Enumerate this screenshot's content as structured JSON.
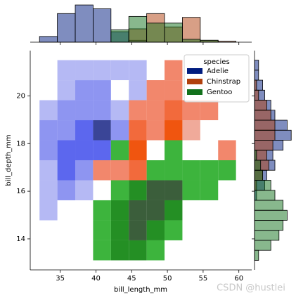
{
  "chart_data": {
    "type": "jointplot",
    "x_label": "bill_length_mm",
    "y_label": "bill_depth_mm",
    "xlim": [
      30.8,
      61.8
    ],
    "ylim": [
      12.7,
      21.9
    ],
    "xticks": [
      35,
      40,
      45,
      50,
      55,
      60
    ],
    "yticks": [
      14,
      16,
      18,
      20
    ],
    "xbins": [
      32.1,
      34.6,
      37.1,
      39.6,
      42.1,
      44.6,
      47.1,
      49.6,
      52.1,
      54.6,
      57.1,
      59.6
    ],
    "ybins": [
      13.1,
      13.94,
      14.78,
      15.62,
      16.46,
      17.3,
      18.14,
      18.98,
      19.82,
      20.66,
      21.5
    ],
    "marginal_x_lim": [
      0,
      42
    ],
    "marginal_y_lim": [
      0,
      20
    ],
    "marginal_y_bins": [
      13.1,
      13.52,
      13.94,
      14.36,
      14.78,
      15.2,
      15.62,
      16.04,
      16.46,
      16.88,
      17.3,
      17.72,
      18.14,
      18.56,
      18.98,
      19.4,
      19.82,
      20.24,
      20.66,
      21.08,
      21.5
    ],
    "legend": {
      "title": "species",
      "position": "upper right"
    },
    "series": [
      {
        "name": "Adelie",
        "color": "#001c7f",
        "cmap": [
          "#b5b9f4",
          "#8e95f1",
          "#5c67ee",
          "#3a4597"
        ],
        "counts": [
          [
            0,
            0,
            0,
            0,
            0,
            0,
            0,
            0,
            0,
            0,
            0
          ],
          [
            0,
            0,
            0,
            0,
            0,
            0,
            0,
            0,
            0,
            0,
            0
          ],
          [
            1,
            0,
            0,
            0,
            0,
            0,
            0,
            0,
            0,
            0,
            0
          ],
          [
            1,
            2,
            1,
            0,
            0,
            0,
            0,
            0,
            0,
            0,
            0
          ],
          [
            1,
            4,
            3,
            0,
            0,
            0,
            0,
            0,
            0,
            0,
            0
          ],
          [
            2,
            4,
            5,
            4,
            0,
            0,
            0,
            0,
            0,
            0,
            0
          ],
          [
            2,
            3,
            5,
            8,
            2,
            0,
            0,
            0,
            0,
            0,
            0
          ],
          [
            1,
            2,
            3,
            2,
            1,
            0,
            0,
            0,
            0,
            0,
            0
          ],
          [
            0,
            1,
            3,
            3,
            0,
            1,
            0,
            0,
            0,
            0,
            0
          ],
          [
            0,
            1,
            1,
            1,
            1,
            1,
            0,
            0,
            0,
            0,
            0
          ]
        ],
        "x_counts": [
          6,
          30,
          39,
          35,
          11,
          2,
          0,
          0,
          0,
          0,
          0
        ],
        "y_counts": [
          0,
          0,
          0,
          0,
          0,
          0,
          1,
          5,
          6,
          10,
          9,
          14,
          18,
          16,
          10,
          8,
          5,
          4,
          2,
          2
        ]
      },
      {
        "name": "Chinstrap",
        "color": "#b1400d",
        "cmap": [
          "#f0aa9a",
          "#f2876c",
          "#f26a3c",
          "#f0550f"
        ],
        "counts": [
          [
            0,
            0,
            0,
            0,
            0,
            0,
            0,
            0,
            0,
            0,
            0
          ],
          [
            0,
            0,
            0,
            0,
            0,
            0,
            0,
            0,
            0,
            0,
            0
          ],
          [
            0,
            0,
            0,
            0,
            0,
            0,
            0,
            0,
            0,
            0,
            0
          ],
          [
            0,
            0,
            0,
            0,
            0,
            0,
            0,
            0,
            0,
            0,
            0
          ],
          [
            0,
            0,
            0,
            2,
            2,
            5,
            0,
            0,
            0,
            0,
            0
          ],
          [
            0,
            0,
            0,
            0,
            0,
            7,
            0,
            0,
            0,
            0,
            2
          ],
          [
            0,
            0,
            0,
            0,
            0,
            4,
            3,
            6,
            1,
            0,
            0
          ],
          [
            0,
            0,
            0,
            0,
            0,
            2,
            2,
            5,
            2,
            2,
            0
          ],
          [
            0,
            0,
            0,
            0,
            0,
            0,
            2,
            2,
            0,
            0,
            0
          ],
          [
            0,
            0,
            0,
            0,
            0,
            0,
            0,
            2,
            0,
            0,
            0
          ]
        ],
        "x_counts": [
          0,
          0,
          0,
          0,
          0,
          14,
          30,
          16,
          26,
          2,
          1
        ],
        "y_counts": [
          0,
          0,
          0,
          0,
          0,
          0,
          0,
          1,
          4,
          7,
          6,
          9,
          10,
          10,
          8,
          6,
          2,
          1,
          0,
          0
        ]
      },
      {
        "name": "Gentoo",
        "color": "#12711c",
        "cmap": [
          "#5dd45d",
          "#3db43d",
          "#248f24",
          "#3b5e3b"
        ],
        "counts": [
          [
            0,
            0,
            0,
            3,
            5,
            5,
            3,
            0,
            0,
            0,
            0
          ],
          [
            0,
            0,
            0,
            3,
            5,
            8,
            5,
            2,
            0,
            0,
            0
          ],
          [
            0,
            0,
            0,
            2,
            5,
            6,
            7,
            5,
            0,
            0,
            0
          ],
          [
            0,
            0,
            0,
            0,
            3,
            4,
            6,
            6,
            3,
            3,
            0
          ],
          [
            0,
            0,
            0,
            0,
            0,
            0,
            2,
            3,
            3,
            2,
            2
          ],
          [
            0,
            0,
            0,
            0,
            3,
            0,
            0,
            2,
            0,
            0,
            0
          ],
          [
            0,
            0,
            0,
            0,
            0,
            0,
            0,
            0,
            0,
            0,
            0
          ],
          [
            0,
            0,
            0,
            0,
            0,
            0,
            0,
            0,
            0,
            0,
            0
          ],
          [
            0,
            0,
            0,
            0,
            0,
            0,
            0,
            0,
            0,
            0,
            0
          ],
          [
            0,
            0,
            0,
            0,
            0,
            0,
            0,
            0,
            0,
            0,
            0
          ]
        ],
        "x_counts": [
          0,
          0,
          0,
          0,
          13,
          27,
          20,
          20,
          3,
          2,
          0
        ],
        "y_counts": [
          2,
          8,
          12,
          14,
          16,
          14,
          10,
          8,
          4,
          3,
          1,
          0,
          0,
          0,
          0,
          0,
          0,
          0,
          0,
          0
        ]
      }
    ],
    "watermark": "CSDN @hustlei"
  }
}
